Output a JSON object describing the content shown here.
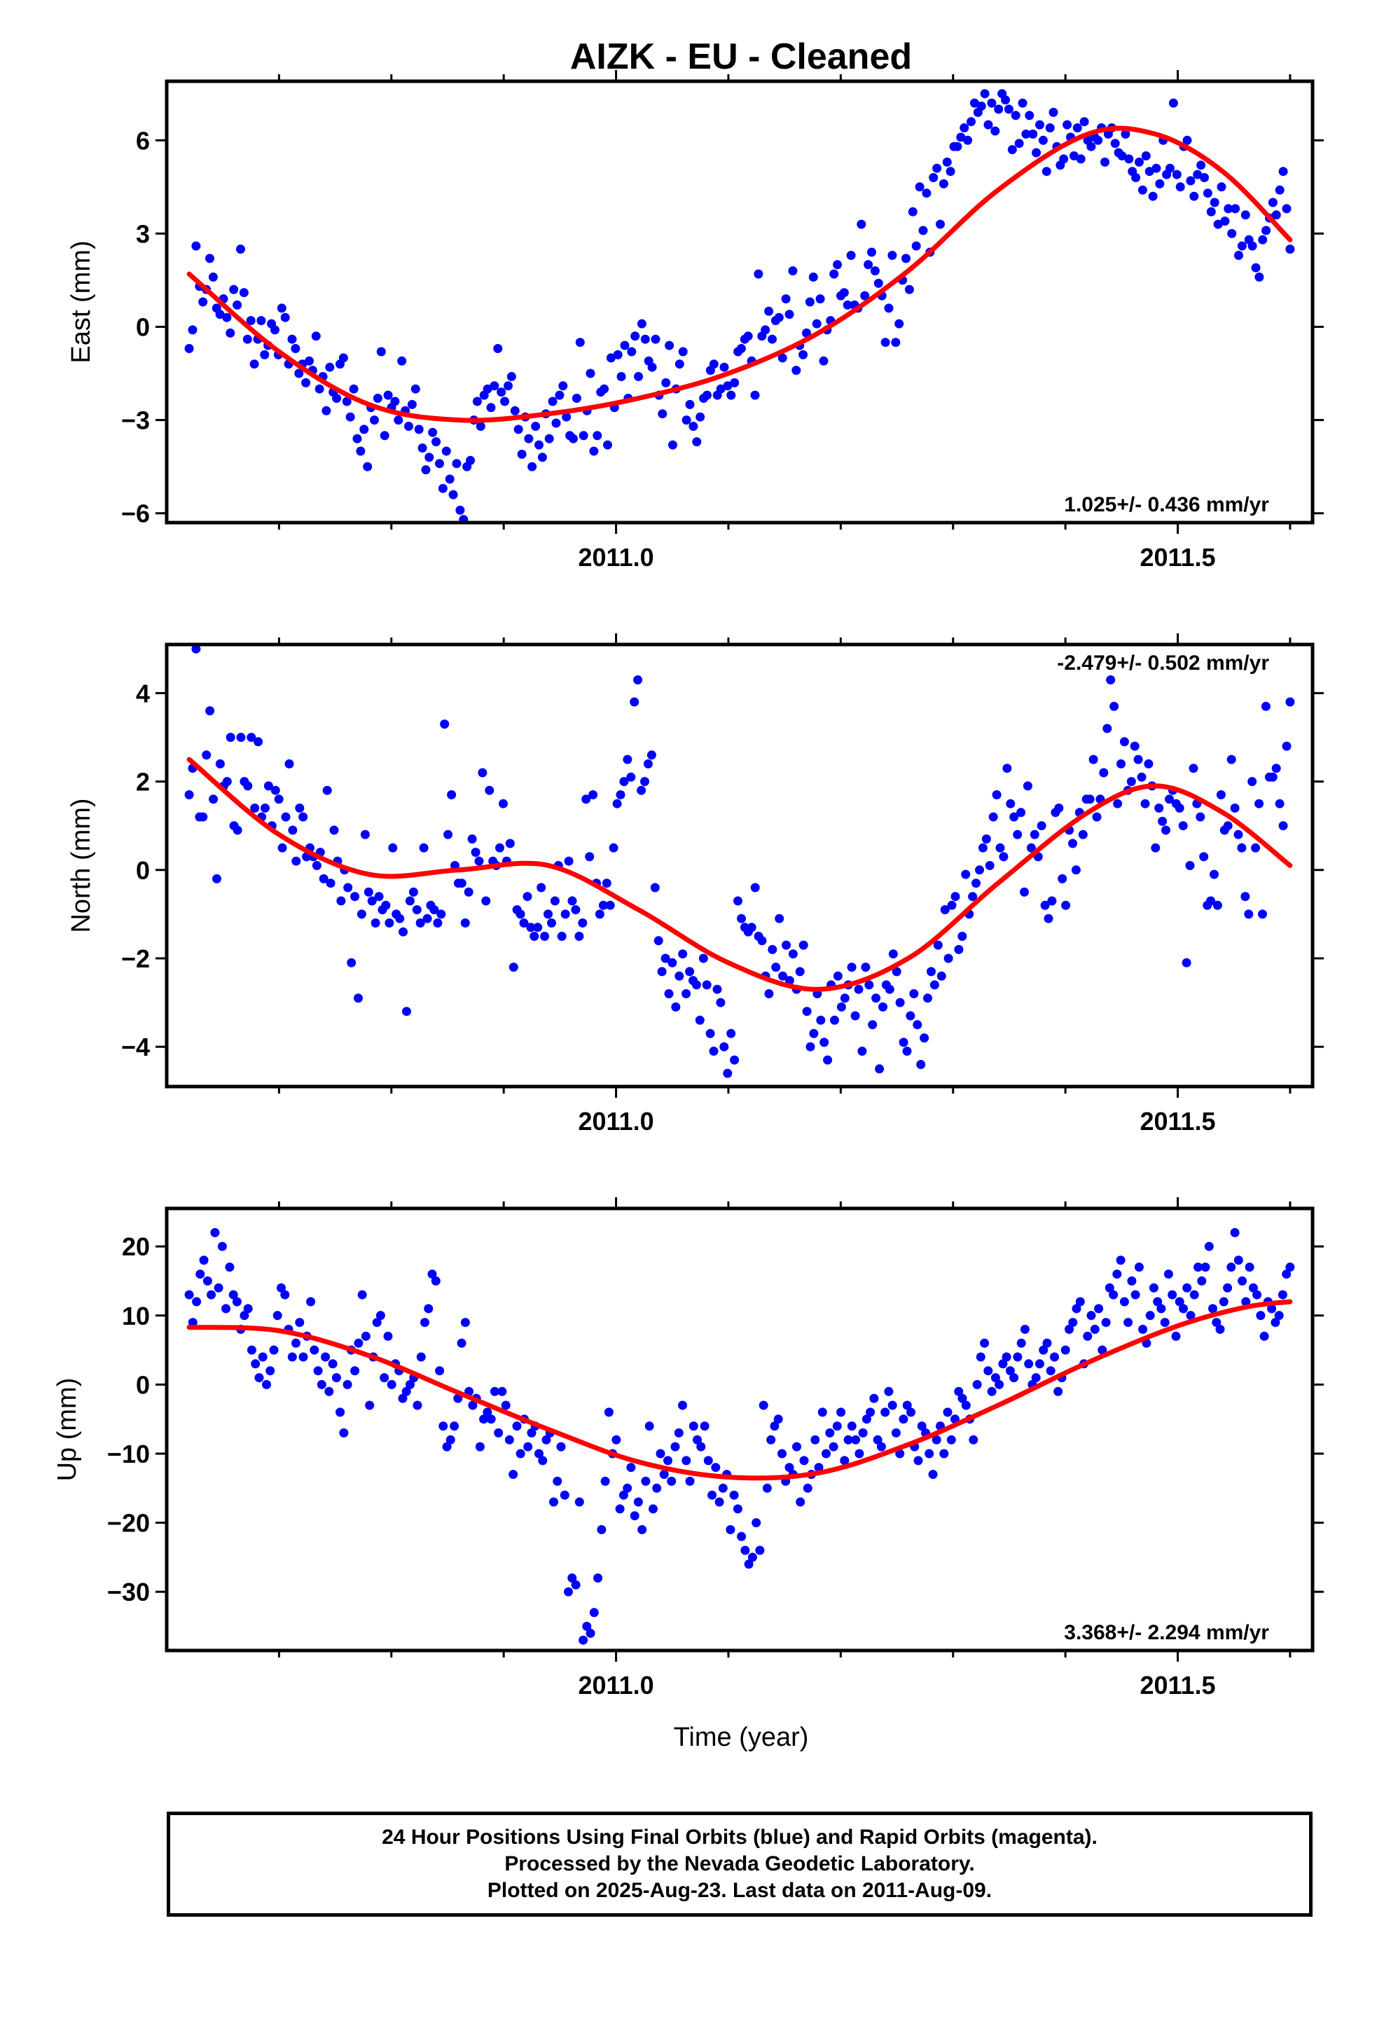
{
  "figure": {
    "title": "AIZK  - EU - Cleaned",
    "xlabel": "Time (year)",
    "caption": [
      "24 Hour Positions Using Final Orbits (blue) and Rapid Orbits (magenta).",
      "Processed by the Nevada Geodetic Laboratory.",
      "Plotted on 2025-Aug-23. Last data on 2011-Aug-09."
    ],
    "colors": {
      "final_orbits": "#0000ff",
      "fit": "#ff0000"
    }
  },
  "chart_data": [
    {
      "type": "scatter",
      "name": "east",
      "ylabel": "East (mm)",
      "rate_text": "1.025+/- 0.436 mm/yr",
      "rate_position": "bottom-right",
      "xlim": [
        2010.6,
        2011.62
      ],
      "ylim": [
        -6.3,
        7.9
      ],
      "xticks": [
        2011.0,
        2011.5
      ],
      "xtick_labels": [
        "2011.0",
        "2011.5"
      ],
      "yticks": [
        -6,
        -3,
        0,
        3,
        6
      ],
      "ytick_labels": [
        "−6",
        "−3",
        "0",
        "3",
        "6"
      ],
      "points": {
        "x_start": 2010.62,
        "x_end": 2011.6,
        "y": [
          -0.7,
          -0.1,
          2.6,
          1.3,
          0.8,
          1.2,
          2.2,
          1.6,
          0.6,
          0.4,
          0.9,
          0.3,
          -0.2,
          1.2,
          0.7,
          2.5,
          1.1,
          -0.4,
          0.2,
          -1.2,
          -0.4,
          0.2,
          -0.9,
          -0.6,
          0.1,
          -0.1,
          -0.9,
          0.6,
          0.3,
          -1.2,
          -0.4,
          -0.7,
          -1.5,
          -1.2,
          -1.8,
          -1.1,
          -1.4,
          -0.3,
          -2.0,
          -1.6,
          -2.7,
          -1.3,
          -2.1,
          -2.3,
          -1.2,
          -1.0,
          -2.4,
          -2.9,
          -2.0,
          -3.6,
          -4.0,
          -3.3,
          -4.5,
          -2.6,
          -3.0,
          -2.3,
          -0.8,
          -3.5,
          -2.2,
          -2.6,
          -2.4,
          -3.0,
          -1.1,
          -2.7,
          -3.2,
          -2.5,
          -2.0,
          -3.3,
          -3.9,
          -4.6,
          -4.2,
          -3.4,
          -3.7,
          -4.4,
          -5.2,
          -4.0,
          -4.9,
          -5.4,
          -4.4,
          -5.9,
          -6.2,
          -4.5,
          -4.3,
          -3.0,
          -2.4,
          -3.2,
          -2.2,
          -2.0,
          -2.6,
          -1.9,
          -0.7,
          -2.1,
          -2.4,
          -1.9,
          -1.6,
          -2.7,
          -3.3,
          -4.1,
          -2.9,
          -3.6,
          -4.5,
          -3.2,
          -3.8,
          -4.2,
          -2.8,
          -3.6,
          -2.4,
          -3.1,
          -2.2,
          -1.9,
          -2.9,
          -3.5,
          -3.6,
          -2.3,
          -0.5,
          -3.5,
          -2.7,
          -1.5,
          -4.0,
          -3.5,
          -2.1,
          -2.0,
          -3.8,
          -1.0,
          -2.6,
          -0.9,
          -1.6,
          -0.6,
          -2.3,
          -0.8,
          -0.3,
          -1.6,
          0.1,
          -0.4,
          -1.1,
          -1.3,
          -0.4,
          -2.2,
          -2.8,
          -1.8,
          -0.6,
          -3.8,
          -2.0,
          -1.2,
          -0.8,
          -3.0,
          -2.5,
          -3.2,
          -3.7,
          -2.9,
          -2.3,
          -2.2,
          -1.4,
          -1.2,
          -2.2,
          -2.0,
          -1.3,
          -1.9,
          -2.2,
          -1.8,
          -0.8,
          -0.7,
          -0.4,
          -0.3,
          -1.1,
          -2.2,
          1.7,
          -0.3,
          -0.1,
          0.5,
          -0.4,
          0.2,
          0.3,
          -1.0,
          0.9,
          0.4,
          1.8,
          -1.4,
          -0.6,
          -0.9,
          -0.2,
          0.8,
          1.6,
          0.1,
          0.9,
          -1.1,
          -0.1,
          0.2,
          1.7,
          2.0,
          1.0,
          1.1,
          0.7,
          2.3,
          0.7,
          0.6,
          3.3,
          1.0,
          2.0,
          2.4,
          1.8,
          1.4,
          1.0,
          -0.5,
          0.6,
          2.3,
          -0.5,
          0.1,
          1.5,
          2.2,
          1.2,
          3.7,
          2.6,
          4.5,
          3.1,
          4.3,
          2.4,
          4.8,
          5.1,
          3.3,
          4.6,
          5.3,
          5.0,
          5.8,
          5.8,
          6.1,
          6.4,
          6.0,
          6.6,
          7.2,
          6.9,
          7.1,
          7.5,
          6.5,
          7.2,
          6.3,
          7.0,
          7.5,
          7.3,
          7.0,
          5.7,
          6.8,
          5.9,
          7.2,
          6.2,
          6.8,
          6.2,
          5.6,
          6.5,
          6.0,
          5.0,
          6.4,
          6.9,
          5.8,
          5.2,
          5.4,
          6.5,
          6.1,
          5.5,
          6.4,
          5.4,
          6.6,
          6.0,
          5.8,
          6.1,
          6.0,
          6.4,
          5.3,
          6.2,
          6.4,
          5.9,
          5.6,
          5.5,
          6.2,
          5.4,
          5.0,
          4.8,
          5.3,
          4.4,
          5.5,
          5.0,
          4.2,
          5.1,
          4.6,
          6.0,
          4.9,
          5.1,
          7.2,
          4.9,
          4.5,
          5.8,
          6.0,
          4.7,
          4.2,
          4.9,
          5.2,
          4.8,
          4.3,
          3.7,
          4.0,
          3.3,
          4.5,
          3.4,
          3.8,
          3.0,
          3.8,
          2.3,
          2.6,
          3.6,
          2.8,
          2.6,
          1.9,
          1.6,
          2.8,
          3.1,
          3.5,
          4.0,
          3.6,
          4.4,
          5.0,
          3.8,
          2.5
        ]
      },
      "fit": {
        "x": [
          2010.62,
          2010.7,
          2010.78,
          2010.86,
          2010.94,
          2011.02,
          2011.1,
          2011.18,
          2011.26,
          2011.34,
          2011.42,
          2011.48,
          2011.54,
          2011.6
        ],
        "y": [
          1.7,
          -0.8,
          -2.5,
          -3.0,
          -2.8,
          -2.3,
          -1.5,
          -0.2,
          1.8,
          4.4,
          6.2,
          6.2,
          5.0,
          2.8
        ]
      }
    },
    {
      "type": "scatter",
      "name": "north",
      "ylabel": "North (mm)",
      "rate_text": "-2.479+/- 0.502 mm/yr",
      "rate_position": "top-right",
      "xlim": [
        2010.6,
        2011.62
      ],
      "ylim": [
        -4.9,
        5.1
      ],
      "xticks": [
        2011.0,
        2011.5
      ],
      "xtick_labels": [
        "2011.0",
        "2011.5"
      ],
      "yticks": [
        -4,
        -2,
        0,
        2,
        4
      ],
      "ytick_labels": [
        "−4",
        "−2",
        "0",
        "2",
        "4"
      ],
      "points": {
        "x_start": 2010.62,
        "x_end": 2011.6,
        "y": [
          1.7,
          2.3,
          5.0,
          1.2,
          1.2,
          2.6,
          3.6,
          1.6,
          -0.2,
          2.4,
          1.9,
          2.0,
          3.0,
          1.0,
          0.9,
          3.0,
          2.0,
          1.9,
          3.0,
          1.4,
          2.9,
          1.2,
          1.4,
          1.9,
          1.0,
          1.8,
          1.6,
          0.5,
          1.2,
          2.4,
          0.9,
          0.2,
          1.4,
          1.2,
          0.3,
          0.5,
          0.3,
          0.1,
          0.4,
          -0.2,
          1.8,
          -0.3,
          0.9,
          0.2,
          -0.7,
          0.0,
          -0.4,
          -2.1,
          -0.6,
          -2.9,
          -1.0,
          0.8,
          -0.5,
          -0.7,
          -1.2,
          -0.6,
          -0.9,
          -0.8,
          -1.2,
          0.5,
          -1.0,
          -1.1,
          -1.4,
          -3.2,
          -0.7,
          -0.5,
          -0.9,
          -1.2,
          0.5,
          -1.1,
          -0.8,
          -0.9,
          -1.2,
          -1.0,
          3.3,
          0.8,
          1.7,
          0.1,
          -0.3,
          -0.3,
          -1.2,
          -0.5,
          0.7,
          0.4,
          0.2,
          2.2,
          -0.7,
          1.8,
          0.2,
          0.1,
          0.5,
          1.5,
          0.2,
          0.6,
          -2.2,
          -0.9,
          -1.0,
          -1.2,
          -0.6,
          -1.3,
          -1.5,
          -1.3,
          -0.4,
          -1.5,
          -1.0,
          -1.2,
          -0.7,
          0.1,
          -1.5,
          -1.0,
          0.2,
          -0.7,
          -0.9,
          -1.5,
          -1.2,
          1.6,
          0.3,
          1.7,
          -0.3,
          -1.0,
          -0.8,
          -0.3,
          -0.8,
          0.5,
          1.5,
          1.7,
          2.0,
          2.5,
          2.1,
          3.8,
          4.3,
          1.8,
          2.0,
          2.4,
          2.6,
          -0.4,
          -1.6,
          -2.3,
          -2.0,
          -2.8,
          -2.1,
          -3.1,
          -2.4,
          -1.9,
          -2.8,
          -2.3,
          -2.5,
          -2.6,
          -3.4,
          -2.0,
          -2.6,
          -3.7,
          -4.1,
          -2.7,
          -3.0,
          -4.0,
          -4.6,
          -3.7,
          -4.3,
          -0.7,
          -1.1,
          -1.3,
          -1.4,
          -1.3,
          -0.4,
          -1.5,
          -1.6,
          -2.4,
          -2.8,
          -1.8,
          -2.2,
          -1.1,
          -2.4,
          -1.7,
          -2.5,
          -1.9,
          -2.7,
          -2.3,
          -1.7,
          -3.2,
          -4.0,
          -3.7,
          -2.8,
          -3.4,
          -3.9,
          -4.3,
          -2.6,
          -3.4,
          -2.4,
          -3.1,
          -2.9,
          -2.6,
          -2.2,
          -3.3,
          -2.7,
          -4.1,
          -2.2,
          -2.6,
          -3.5,
          -2.9,
          -4.5,
          -3.1,
          -2.6,
          -2.7,
          -1.9,
          -2.3,
          -3.0,
          -3.9,
          -4.1,
          -3.3,
          -2.8,
          -3.5,
          -4.4,
          -3.8,
          -2.9,
          -2.3,
          -2.6,
          -1.7,
          -2.4,
          -0.9,
          -2.0,
          -0.8,
          -0.6,
          -1.8,
          -1.5,
          -0.1,
          -1.0,
          -0.6,
          -0.3,
          0.0,
          0.5,
          0.7,
          0.1,
          1.2,
          1.7,
          0.5,
          0.3,
          2.3,
          1.5,
          1.2,
          0.8,
          1.3,
          -0.5,
          1.9,
          0.5,
          0.8,
          0.3,
          1.0,
          -0.8,
          -1.1,
          -0.7,
          1.3,
          1.4,
          -0.2,
          -0.8,
          0.9,
          0.6,
          0.0,
          1.3,
          0.8,
          1.6,
          1.6,
          2.5,
          1.2,
          1.6,
          2.2,
          3.2,
          4.3,
          3.7,
          1.5,
          2.4,
          2.9,
          1.8,
          2.0,
          2.8,
          2.5,
          2.1,
          1.5,
          2.4,
          1.9,
          0.5,
          1.4,
          1.1,
          0.9,
          1.6,
          1.8,
          1.5,
          1.4,
          1.0,
          -2.1,
          0.1,
          2.3,
          1.5,
          1.2,
          0.3,
          -0.8,
          -0.7,
          -0.1,
          -0.8,
          1.7,
          0.9,
          1.0,
          2.5,
          1.4,
          0.8,
          0.5,
          -0.6,
          -1.0,
          2.0,
          0.5,
          1.5,
          -1.0,
          3.7,
          2.1,
          2.1,
          2.3,
          1.5,
          1.0,
          2.8,
          3.8
        ]
      },
      "fit": {
        "x": [
          2010.62,
          2010.7,
          2010.78,
          2010.86,
          2010.94,
          2011.02,
          2011.1,
          2011.18,
          2011.26,
          2011.34,
          2011.42,
          2011.48,
          2011.54,
          2011.6
        ],
        "y": [
          2.5,
          0.8,
          -0.1,
          0.0,
          0.1,
          -0.9,
          -2.1,
          -2.7,
          -2.0,
          -0.3,
          1.3,
          1.9,
          1.3,
          0.1
        ]
      }
    },
    {
      "type": "scatter",
      "name": "up",
      "ylabel": "Up (mm)",
      "rate_text": "3.368+/- 2.294 mm/yr",
      "rate_position": "bottom-right",
      "xlim": [
        2010.6,
        2011.62
      ],
      "ylim": [
        -38.5,
        25.5
      ],
      "xticks": [
        2011.0,
        2011.5
      ],
      "xtick_labels": [
        "2011.0",
        "2011.5"
      ],
      "yticks": [
        -30,
        -20,
        -10,
        0,
        10,
        20
      ],
      "ytick_labels": [
        "−30",
        "−20",
        "−10",
        "0",
        "10",
        "20"
      ],
      "points": {
        "x_start": 2010.62,
        "x_end": 2011.6,
        "y": [
          13.0,
          9.0,
          12.0,
          16.0,
          18.0,
          15.0,
          13.0,
          22.0,
          14.0,
          20.0,
          11.0,
          17.0,
          13.0,
          12.0,
          8.0,
          10.0,
          11.0,
          5.0,
          3.0,
          1.0,
          4.0,
          0.0,
          2.0,
          5.0,
          10.0,
          14.0,
          13.0,
          8.0,
          4.0,
          6.0,
          9.0,
          4.0,
          7.0,
          12.0,
          5.0,
          2.0,
          0.0,
          4.0,
          -1.0,
          3.0,
          1.0,
          -4.0,
          -7.0,
          0.0,
          5.0,
          2.0,
          6.0,
          13.0,
          7.0,
          -3.0,
          4.0,
          9.0,
          10.0,
          1.0,
          7.0,
          0.0,
          3.0,
          2.0,
          -2.0,
          -1.0,
          0.0,
          1.0,
          -3.0,
          4.0,
          9.0,
          11.0,
          16.0,
          15.0,
          2.0,
          -6.0,
          -9.0,
          -8.0,
          -6.0,
          -2.0,
          6.0,
          9.0,
          -1.0,
          -3.0,
          -2.0,
          -9.0,
          -5.0,
          -4.0,
          -5.0,
          -1.0,
          -7.0,
          -1.0,
          -3.0,
          -8.0,
          -13.0,
          -6.0,
          -10.0,
          -5.0,
          -9.0,
          -7.0,
          -6.0,
          -10.0,
          -11.0,
          -8.0,
          -7.0,
          -17.0,
          -14.0,
          -9.0,
          -16.0,
          -30.0,
          -28.0,
          -29.0,
          -17.0,
          -37.0,
          -35.0,
          -36.0,
          -33.0,
          -28.0,
          -21.0,
          -14.0,
          -4.0,
          -10.0,
          -8.0,
          -18.0,
          -16.0,
          -15.0,
          -12.0,
          -19.0,
          -17.0,
          -21.0,
          -14.0,
          -6.0,
          -18.0,
          -15.0,
          -10.0,
          -13.0,
          -11.0,
          -14.0,
          -9.0,
          -7.0,
          -3.0,
          -11.0,
          -14.0,
          -6.0,
          -8.0,
          -9.0,
          -6.0,
          -11.0,
          -16.0,
          -12.0,
          -17.0,
          -15.0,
          -13.0,
          -21.0,
          -16.0,
          -18.0,
          -22.0,
          -24.0,
          -26.0,
          -25.0,
          -20.0,
          -24.0,
          -3.0,
          -15.0,
          -8.0,
          -6.0,
          -5.0,
          -10.0,
          -14.0,
          -12.0,
          -13.0,
          -9.0,
          -17.0,
          -11.0,
          -15.0,
          -13.0,
          -8.0,
          -12.0,
          -4.0,
          -10.0,
          -7.0,
          -9.0,
          -6.0,
          -4.0,
          -11.0,
          -8.0,
          -6.0,
          -8.0,
          -10.0,
          -7.0,
          -5.0,
          -4.0,
          -2.0,
          -8.0,
          -9.0,
          -4.0,
          -1.0,
          -3.0,
          -7.0,
          -10.0,
          -5.0,
          -3.0,
          -4.0,
          -9.0,
          -11.0,
          -6.0,
          -7.0,
          -10.0,
          -13.0,
          -8.0,
          -6.0,
          -10.0,
          -4.0,
          -8.0,
          -5.0,
          -1.0,
          -2.0,
          -3.0,
          -5.0,
          -8.0,
          0.0,
          4.0,
          6.0,
          2.0,
          -1.0,
          1.0,
          0.0,
          3.0,
          4.0,
          2.0,
          1.0,
          4.0,
          6.0,
          8.0,
          3.0,
          0.0,
          1.0,
          3.0,
          5.0,
          6.0,
          2.0,
          4.0,
          -1.0,
          1.0,
          5.0,
          8.0,
          9.0,
          11.0,
          12.0,
          3.0,
          7.0,
          10.0,
          8.0,
          11.0,
          5.0,
          9.0,
          14.0,
          13.0,
          16.0,
          18.0,
          12.0,
          9.0,
          15.0,
          13.0,
          17.0,
          8.0,
          6.0,
          10.0,
          14.0,
          12.0,
          11.0,
          9.0,
          16.0,
          13.0,
          7.0,
          12.0,
          11.0,
          14.0,
          10.0,
          13.0,
          17.0,
          15.0,
          17.0,
          20.0,
          11.0,
          9.0,
          8.0,
          12.0,
          14.0,
          17.0,
          22.0,
          18.0,
          15.0,
          12.0,
          17.0,
          14.0,
          13.0,
          10.0,
          7.0,
          12.0,
          11.0,
          9.0,
          10.0,
          13.0,
          16.0,
          17.0
        ]
      },
      "fit": {
        "x": [
          2010.62,
          2010.7,
          2010.78,
          2010.86,
          2010.94,
          2011.02,
          2011.1,
          2011.18,
          2011.26,
          2011.34,
          2011.42,
          2011.5,
          2011.56,
          2011.6
        ],
        "y": [
          8.3,
          7.8,
          4.2,
          -1.2,
          -6.5,
          -11.2,
          -13.4,
          -12.8,
          -8.7,
          -3.0,
          3.2,
          8.5,
          11.2,
          12.0
        ]
      }
    }
  ]
}
